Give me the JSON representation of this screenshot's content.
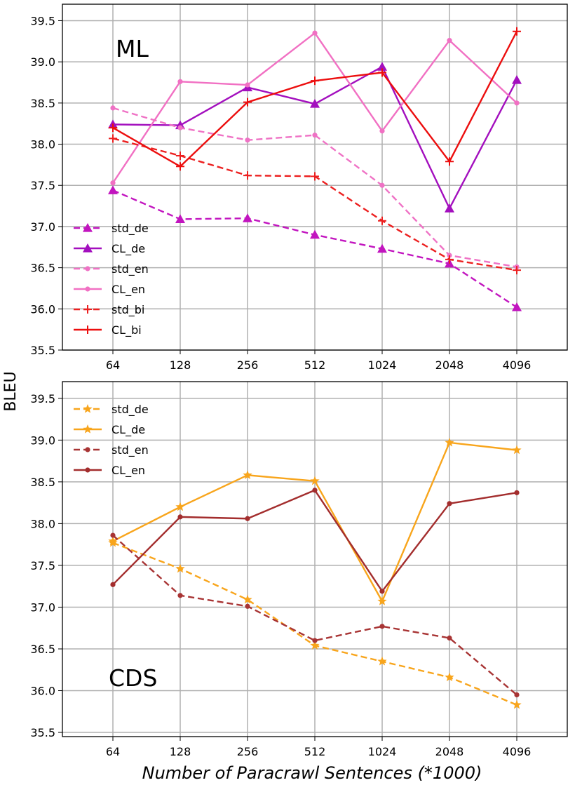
{
  "chart_data": [
    {
      "type": "line",
      "title": "ML",
      "categories": [
        "64",
        "128",
        "256",
        "512",
        "1024",
        "2048",
        "4096"
      ],
      "ylim": [
        35.5,
        39.7
      ],
      "yticks": [
        "35.5",
        "36.0",
        "36.5",
        "37.0",
        "37.5",
        "38.0",
        "38.5",
        "39.0",
        "39.5"
      ],
      "grid": true,
      "legend_position": "left",
      "series": [
        {
          "name": "std_de",
          "values": [
            37.44,
            37.09,
            37.1,
            36.9,
            36.73,
            36.55,
            36.02
          ],
          "color": "#c215bf",
          "style": "dashed",
          "marker": "triangle"
        },
        {
          "name": "CL_de",
          "values": [
            38.24,
            38.23,
            38.69,
            38.49,
            38.94,
            37.22,
            38.78
          ],
          "color": "#a30fbe",
          "style": "solid",
          "marker": "triangle"
        },
        {
          "name": "std_en",
          "values": [
            38.44,
            38.2,
            38.05,
            38.11,
            37.5,
            36.65,
            36.51
          ],
          "color": "#ef72c5",
          "style": "dashed",
          "marker": "dot"
        },
        {
          "name": "CL_en",
          "values": [
            37.53,
            38.76,
            38.72,
            39.35,
            38.16,
            39.26,
            38.5
          ],
          "color": "#f170c3",
          "style": "solid",
          "marker": "dot"
        },
        {
          "name": "std_bi",
          "values": [
            38.07,
            37.86,
            37.62,
            37.61,
            37.07,
            36.6,
            36.47
          ],
          "color": "#ec2020",
          "style": "dashed",
          "marker": "plus"
        },
        {
          "name": "CL_bi",
          "values": [
            38.2,
            37.73,
            38.51,
            38.77,
            38.87,
            37.79,
            39.37
          ],
          "color": "#ec0e0e",
          "style": "solid",
          "marker": "plus"
        }
      ]
    },
    {
      "type": "line",
      "title": "CDS",
      "categories": [
        "64",
        "128",
        "256",
        "512",
        "1024",
        "2048",
        "4096"
      ],
      "ylim": [
        35.45,
        39.7
      ],
      "yticks": [
        "35.5",
        "36.0",
        "36.5",
        "37.0",
        "37.5",
        "38.0",
        "38.5",
        "39.0",
        "39.5"
      ],
      "grid": true,
      "legend_position": "top-left",
      "series": [
        {
          "name": "std_de",
          "values": [
            37.77,
            37.46,
            37.09,
            36.54,
            36.35,
            36.16,
            35.83
          ],
          "color": "#f8a51c",
          "style": "dashed",
          "marker": "star"
        },
        {
          "name": "CL_de",
          "values": [
            37.79,
            38.2,
            38.58,
            38.51,
            37.07,
            38.97,
            38.88
          ],
          "color": "#f8a51c",
          "style": "solid",
          "marker": "star"
        },
        {
          "name": "std_en",
          "values": [
            37.86,
            37.14,
            37.01,
            36.6,
            36.77,
            36.63,
            35.95
          ],
          "color": "#a83434",
          "style": "dashed",
          "marker": "dot"
        },
        {
          "name": "CL_en",
          "values": [
            37.27,
            38.08,
            38.06,
            38.4,
            37.19,
            38.24,
            38.37
          ],
          "color": "#a32d2d",
          "style": "solid",
          "marker": "dot"
        }
      ]
    }
  ],
  "ylabel": "BLEU",
  "xlabel": "Number of Paracrawl Sentences (*1000)"
}
